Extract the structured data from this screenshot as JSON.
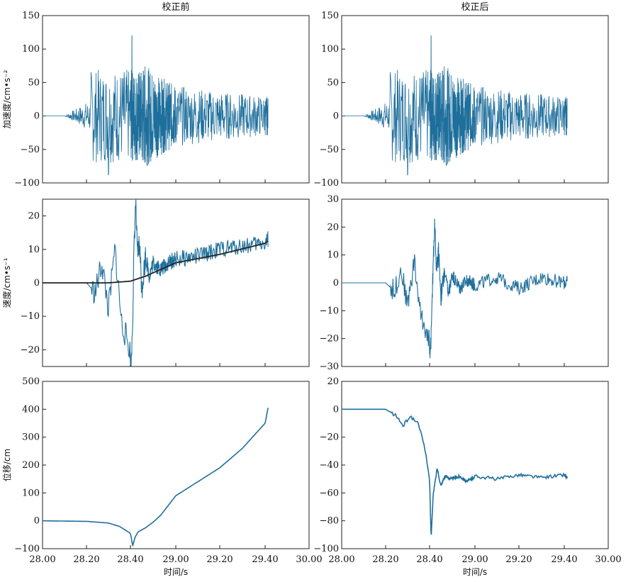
{
  "columns": [
    "校正前",
    "校正后"
  ],
  "xlabel": "时间/s",
  "chart_data": [
    {
      "type": "line",
      "row": 0,
      "col": 0,
      "ylabel": "加速度/cm•s⁻²",
      "xlim": [
        28.0,
        30.0
      ],
      "ylim": [
        -100,
        150
      ],
      "yticks": [
        -100,
        -50,
        0,
        50,
        100,
        150
      ],
      "xticks": [
        "28.00",
        "28.20",
        "28.40",
        "29.00",
        "29.20",
        "29.40",
        "30.00"
      ],
      "show_xticklabels": false,
      "series": [
        {
          "color": "#1f6f9c",
          "kind": "accel",
          "seed": 7,
          "t_start": 28.1,
          "t_end": 29.44,
          "points": [
            [
              28.0,
              0
            ],
            [
              28.1,
              0
            ],
            [
              28.2,
              -8
            ],
            [
              28.25,
              60
            ],
            [
              28.3,
              -85
            ],
            [
              28.35,
              70
            ],
            [
              28.42,
              120
            ],
            [
              28.45,
              -70
            ],
            [
              28.5,
              60
            ],
            [
              28.6,
              -40
            ],
            [
              28.7,
              30
            ],
            [
              28.8,
              20
            ],
            [
              29.0,
              -25
            ],
            [
              29.1,
              35
            ],
            [
              29.2,
              15
            ],
            [
              29.3,
              40
            ],
            [
              29.4,
              10
            ],
            [
              29.44,
              0
            ]
          ]
        }
      ]
    },
    {
      "type": "line",
      "row": 0,
      "col": 1,
      "ylabel": "",
      "xlim": [
        28.0,
        30.0
      ],
      "ylim": [
        -100,
        150
      ],
      "yticks": [
        -100,
        -50,
        0,
        50,
        100,
        150
      ],
      "xticks": [
        "28.00",
        "28.20",
        "28.40",
        "29.00",
        "29.20",
        "29.40",
        "30.00"
      ],
      "show_xticklabels": false,
      "series": [
        {
          "color": "#1f6f9c",
          "kind": "accel",
          "seed": 7,
          "t_start": 28.1,
          "t_end": 29.44,
          "points": [
            [
              28.0,
              0
            ],
            [
              28.1,
              0
            ],
            [
              28.2,
              -8
            ],
            [
              28.25,
              60
            ],
            [
              28.3,
              -85
            ],
            [
              28.35,
              70
            ],
            [
              28.42,
              120
            ],
            [
              28.45,
              -70
            ],
            [
              28.5,
              60
            ],
            [
              28.6,
              -40
            ],
            [
              28.7,
              30
            ],
            [
              28.8,
              20
            ],
            [
              29.0,
              -25
            ],
            [
              29.1,
              35
            ],
            [
              29.2,
              15
            ],
            [
              29.3,
              40
            ],
            [
              29.4,
              10
            ],
            [
              29.44,
              0
            ]
          ]
        }
      ]
    },
    {
      "type": "line",
      "row": 1,
      "col": 0,
      "ylabel": "速度/cm•s⁻¹",
      "xlim": [
        28.0,
        30.0
      ],
      "ylim": [
        -25,
        25
      ],
      "yticks": [
        -20,
        -10,
        0,
        10,
        20
      ],
      "xticks": [
        "28.00",
        "28.20",
        "28.40",
        "29.00",
        "29.20",
        "29.40",
        "30.00"
      ],
      "show_xticklabels": false,
      "series": [
        {
          "color": "#1f6f9c",
          "kind": "noisy",
          "points": [
            [
              28.0,
              0
            ],
            [
              28.2,
              0
            ],
            [
              28.24,
              -3
            ],
            [
              28.27,
              6
            ],
            [
              28.3,
              -8
            ],
            [
              28.33,
              10
            ],
            [
              28.36,
              -12
            ],
            [
              28.39,
              -18
            ],
            [
              28.41,
              -25
            ],
            [
              28.43,
              -10
            ],
            [
              28.45,
              12
            ],
            [
              28.47,
              25
            ],
            [
              28.49,
              8
            ],
            [
              28.52,
              12
            ],
            [
              28.55,
              -2
            ],
            [
              28.6,
              8
            ],
            [
              28.65,
              2
            ],
            [
              28.7,
              6
            ],
            [
              28.8,
              4
            ],
            [
              28.9,
              6
            ],
            [
              29.0,
              7
            ],
            [
              29.1,
              8
            ],
            [
              29.2,
              10
            ],
            [
              29.3,
              11
            ],
            [
              29.4,
              12
            ],
            [
              29.44,
              13
            ]
          ]
        },
        {
          "color": "#222222",
          "kind": "trend",
          "points": [
            [
              28.0,
              0
            ],
            [
              28.3,
              0
            ],
            [
              28.4,
              0.5
            ],
            [
              28.6,
              2
            ],
            [
              28.8,
              4
            ],
            [
              29.0,
              6
            ],
            [
              29.2,
              8.5
            ],
            [
              29.44,
              12.5
            ]
          ]
        }
      ]
    },
    {
      "type": "line",
      "row": 1,
      "col": 1,
      "ylabel": "",
      "xlim": [
        28.0,
        30.0
      ],
      "ylim": [
        -30,
        30
      ],
      "yticks": [
        -30,
        -20,
        -10,
        0,
        10,
        20,
        30
      ],
      "xticks": [
        "28.00",
        "28.20",
        "28.40",
        "29.00",
        "29.20",
        "29.40",
        "30.00"
      ],
      "show_xticklabels": false,
      "series": [
        {
          "color": "#1f6f9c",
          "kind": "noisy",
          "points": [
            [
              28.0,
              0
            ],
            [
              28.2,
              0
            ],
            [
              28.24,
              -3
            ],
            [
              28.27,
              5
            ],
            [
              28.3,
              -8
            ],
            [
              28.33,
              8
            ],
            [
              28.36,
              -12
            ],
            [
              28.39,
              -18
            ],
            [
              28.41,
              -25
            ],
            [
              28.43,
              -12
            ],
            [
              28.45,
              10
            ],
            [
              28.47,
              22
            ],
            [
              28.49,
              4
            ],
            [
              28.52,
              12
            ],
            [
              28.55,
              -5
            ],
            [
              28.6,
              4
            ],
            [
              28.65,
              -4
            ],
            [
              28.7,
              3
            ],
            [
              28.8,
              -2
            ],
            [
              28.9,
              1
            ],
            [
              29.0,
              -1
            ],
            [
              29.1,
              2
            ],
            [
              29.2,
              -2
            ],
            [
              29.3,
              2
            ],
            [
              29.4,
              0
            ],
            [
              29.44,
              0
            ]
          ]
        }
      ]
    },
    {
      "type": "line",
      "row": 2,
      "col": 0,
      "ylabel": "位移/cm",
      "xlim": [
        28.0,
        30.0
      ],
      "ylim": [
        -100,
        500
      ],
      "yticks": [
        -100,
        0,
        100,
        200,
        300,
        400,
        500
      ],
      "xticks": [
        "28.00",
        "28.20",
        "28.40",
        "29.00",
        "29.20",
        "29.40",
        "30.00"
      ],
      "show_xticklabels": true,
      "series": [
        {
          "color": "#1f6f9c",
          "kind": "smooth",
          "points": [
            [
              28.0,
              0
            ],
            [
              28.2,
              -2
            ],
            [
              28.3,
              -8
            ],
            [
              28.35,
              -20
            ],
            [
              28.4,
              -45
            ],
            [
              28.43,
              -90
            ],
            [
              28.46,
              -60
            ],
            [
              28.5,
              -40
            ],
            [
              28.6,
              -25
            ],
            [
              28.7,
              -5
            ],
            [
              28.8,
              20
            ],
            [
              28.9,
              55
            ],
            [
              29.0,
              90
            ],
            [
              29.1,
              140
            ],
            [
              29.2,
              190
            ],
            [
              29.3,
              260
            ],
            [
              29.4,
              350
            ],
            [
              29.44,
              405
            ]
          ]
        }
      ]
    },
    {
      "type": "line",
      "row": 2,
      "col": 1,
      "ylabel": "",
      "xlim": [
        28.0,
        30.0
      ],
      "ylim": [
        -100,
        20
      ],
      "yticks": [
        -100,
        -80,
        -60,
        -40,
        -20,
        0,
        20
      ],
      "xticks": [
        "28.00",
        "28.20",
        "28.40",
        "29.00",
        "29.20",
        "29.40",
        "30.00"
      ],
      "show_xticklabels": true,
      "series": [
        {
          "color": "#1f6f9c",
          "kind": "smooth",
          "points": [
            [
              28.0,
              0
            ],
            [
              28.2,
              0
            ],
            [
              28.25,
              -5
            ],
            [
              28.28,
              -12
            ],
            [
              28.31,
              -5
            ],
            [
              28.35,
              -10
            ],
            [
              28.38,
              -30
            ],
            [
              28.4,
              -50
            ],
            [
              28.42,
              -92
            ],
            [
              28.45,
              -60
            ],
            [
              28.48,
              -50
            ],
            [
              28.5,
              -42
            ],
            [
              28.55,
              -55
            ],
            [
              28.6,
              -48
            ],
            [
              28.7,
              -50
            ],
            [
              28.8,
              -48
            ],
            [
              28.9,
              -52
            ],
            [
              29.0,
              -48
            ],
            [
              29.1,
              -50
            ],
            [
              29.2,
              -47
            ],
            [
              29.3,
              -49
            ],
            [
              29.4,
              -47
            ],
            [
              29.44,
              -49
            ]
          ]
        }
      ]
    }
  ]
}
